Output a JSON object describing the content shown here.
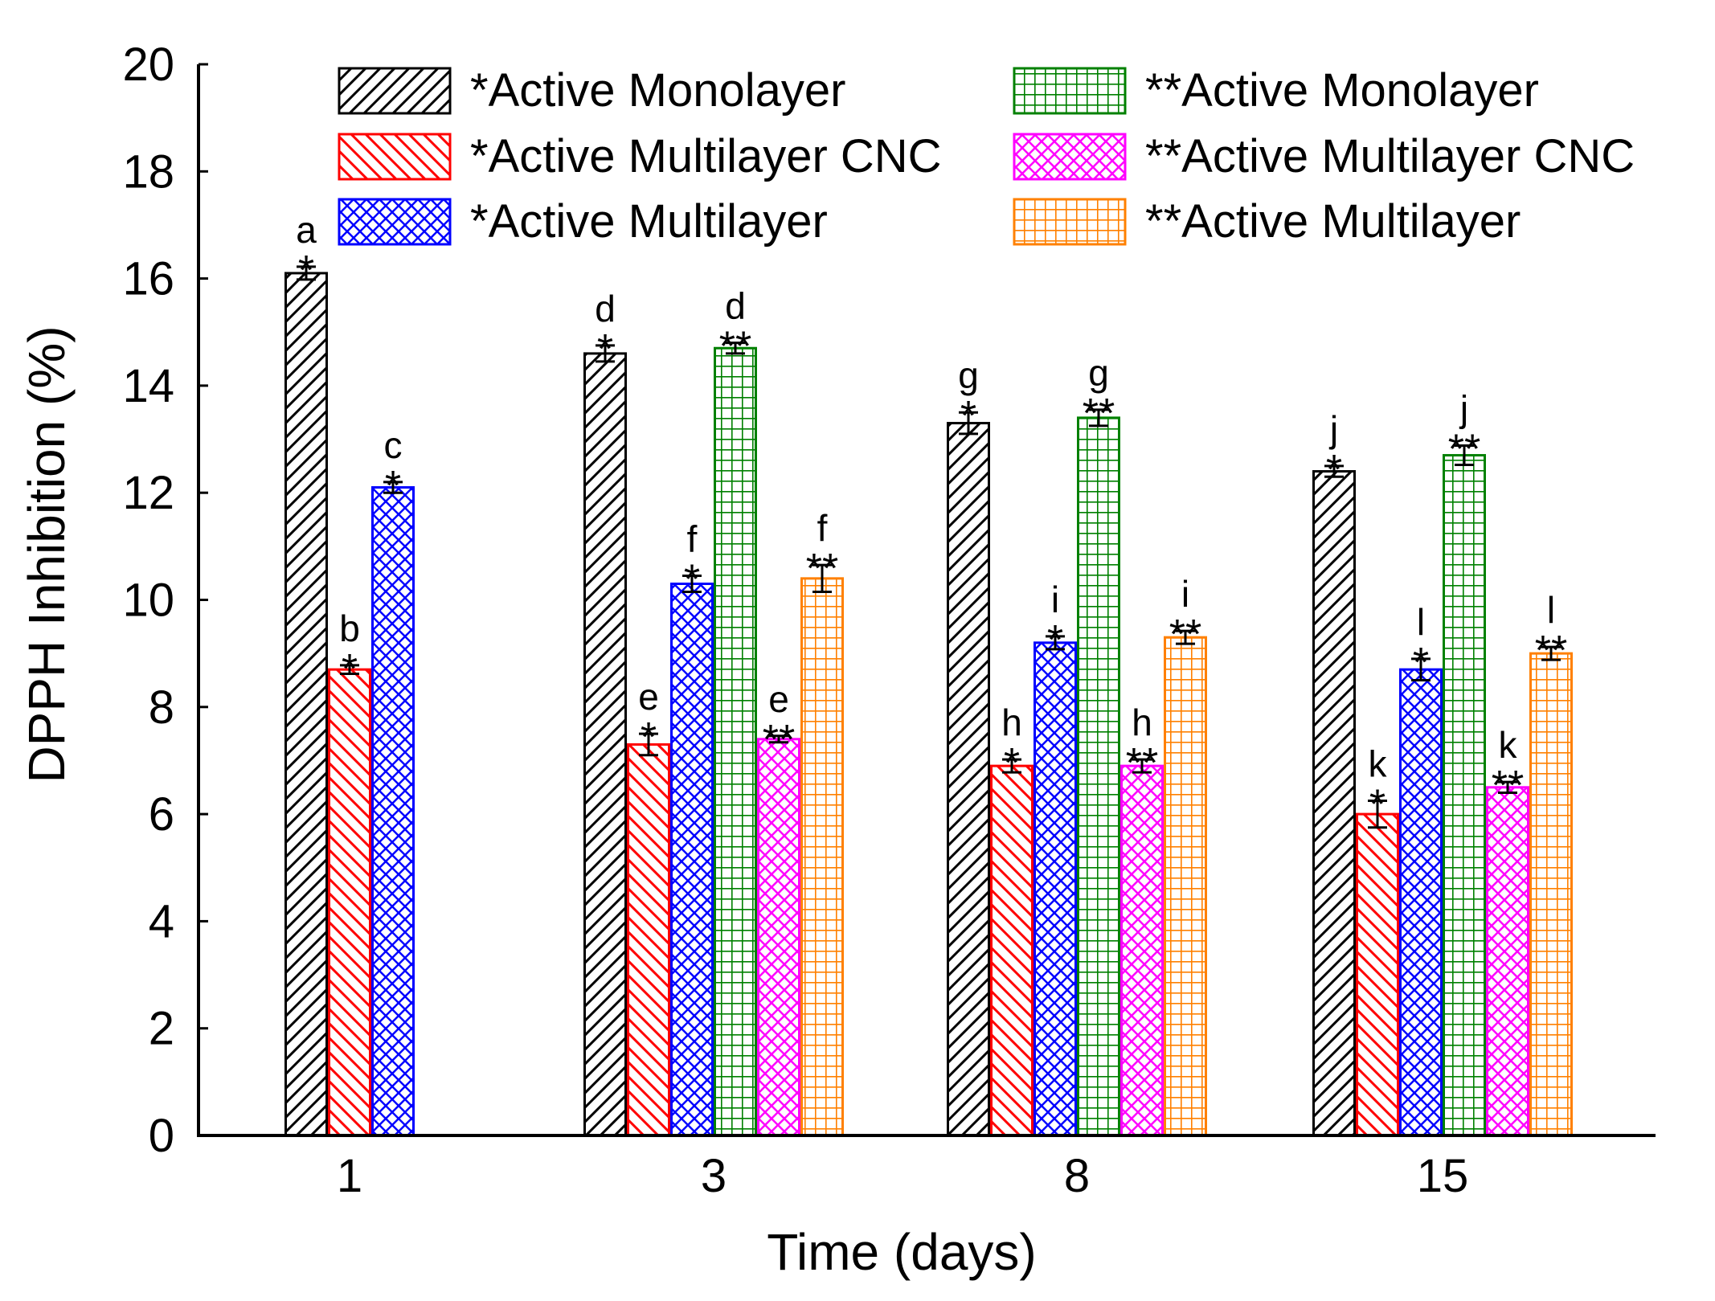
{
  "chart_data": {
    "type": "bar",
    "title": "",
    "xlabel": "Time (days)",
    "ylabel": "DPPH Inhibition (%)",
    "ylim": [
      0,
      20
    ],
    "yticks": [
      0,
      2,
      4,
      6,
      8,
      10,
      12,
      14,
      16,
      18,
      20
    ],
    "grid": false,
    "legend_position": "top",
    "categories": [
      "1",
      "3",
      "8",
      "15"
    ],
    "series": [
      {
        "name": "*Active Monolayer",
        "color": "#000000",
        "pattern": "diag-right",
        "star": "*",
        "values": [
          16.1,
          14.6,
          13.3,
          12.4
        ],
        "errors": [
          0.12,
          0.15,
          0.2,
          0.1
        ],
        "letters": [
          "a",
          "d",
          "g",
          "j"
        ]
      },
      {
        "name": "*Active Multilayer CNC",
        "color": "#ff0000",
        "pattern": "diag-left",
        "star": "*",
        "values": [
          8.7,
          7.3,
          6.9,
          6.0
        ],
        "errors": [
          0.08,
          0.2,
          0.12,
          0.25
        ],
        "letters": [
          "b",
          "e",
          "h",
          "k"
        ]
      },
      {
        "name": "*Active Multilayer",
        "color": "#0000ff",
        "pattern": "crosshatch",
        "star": "*",
        "values": [
          12.1,
          10.3,
          9.2,
          8.7
        ],
        "errors": [
          0.1,
          0.15,
          0.12,
          0.2
        ],
        "letters": [
          "c",
          "f",
          "i",
          "l"
        ]
      },
      {
        "name": "**Active Monolayer",
        "color": "#008000",
        "pattern": "grid",
        "star": "**",
        "values": [
          null,
          14.7,
          13.4,
          12.7
        ],
        "errors": [
          null,
          0.1,
          0.15,
          0.18
        ],
        "letters": [
          "",
          "d",
          "g",
          "j"
        ]
      },
      {
        "name": "**Active Multilayer CNC",
        "color": "#ff00ff",
        "pattern": "crosshatch",
        "star": "**",
        "values": [
          null,
          7.4,
          6.9,
          6.5
        ],
        "errors": [
          null,
          0.06,
          0.12,
          0.1
        ],
        "letters": [
          "",
          "e",
          "h",
          "k"
        ]
      },
      {
        "name": "**Active Multilayer",
        "color": "#ff8000",
        "pattern": "grid",
        "star": "**",
        "values": [
          null,
          10.4,
          9.3,
          9.0
        ],
        "errors": [
          null,
          0.25,
          0.12,
          0.12
        ],
        "letters": [
          "",
          "f",
          "i",
          "l"
        ]
      }
    ]
  }
}
